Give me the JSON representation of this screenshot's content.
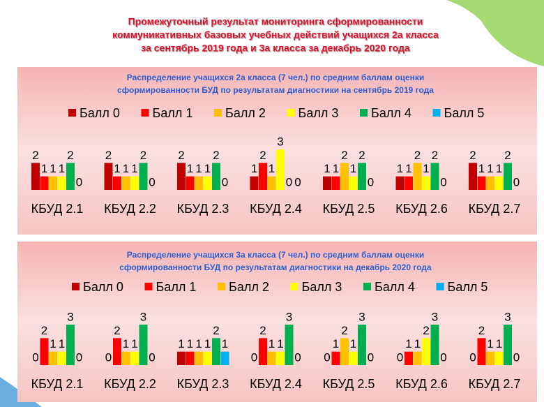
{
  "title": [
    "Промежуточный результат мониторинга сформированности",
    "коммуникативных базовых учебных действий учащихся 2а класса",
    "за сентябрь 2019 года и 3а класса за декабрь 2020 года"
  ],
  "chart_data": [
    {
      "type": "bar",
      "title": [
        "Распределение учащихся 2а класса (7 чел.) по средним баллам оценки",
        "сформированности  БУД по результатам диагностики на сентябрь 2019 года"
      ],
      "categories": [
        "КБУД 2.1",
        "КБУД 2.2",
        "КБУД 2.3",
        "КБУД 2.4",
        "КБУД 2.5",
        "КБУД 2.6",
        "КБУД 2.7"
      ],
      "series": [
        {
          "name": "Балл 0",
          "color": "#c00000",
          "values": [
            2,
            2,
            2,
            1,
            1,
            1,
            2
          ]
        },
        {
          "name": "Балл 1",
          "color": "#ff0000",
          "values": [
            1,
            1,
            1,
            2,
            1,
            1,
            1
          ]
        },
        {
          "name": "Балл 2",
          "color": "#ffc000",
          "values": [
            1,
            1,
            1,
            1,
            2,
            2,
            1
          ]
        },
        {
          "name": "Балл 3",
          "color": "#ffff00",
          "values": [
            1,
            1,
            1,
            3,
            1,
            1,
            1
          ]
        },
        {
          "name": "Балл 4",
          "color": "#00b050",
          "values": [
            2,
            2,
            2,
            0,
            2,
            2,
            2
          ]
        },
        {
          "name": "Балл 5",
          "color": "#00b0f0",
          "values": [
            0,
            0,
            0,
            0,
            0,
            0,
            0
          ]
        }
      ]
    },
    {
      "type": "bar",
      "title": [
        "Распределение учащихся 3а класса (7 чел.) по средним баллам оценки",
        "сформированности  БУД по результатам диагностики на декабрь 2020 года"
      ],
      "categories": [
        "КБУД 2.1",
        "КБУД 2.2",
        "КБУД 2.3",
        "КБУД 2.4",
        "КБУД 2.5",
        "КБУД 2.6",
        "КБУД 2.7"
      ],
      "series": [
        {
          "name": "Балл 0",
          "color": "#c00000",
          "values": [
            0,
            0,
            1,
            0,
            0,
            0,
            0
          ]
        },
        {
          "name": "Балл 1",
          "color": "#ff0000",
          "values": [
            2,
            2,
            1,
            2,
            1,
            1,
            2
          ]
        },
        {
          "name": "Балл 2",
          "color": "#ffc000",
          "values": [
            1,
            1,
            1,
            1,
            2,
            1,
            1
          ]
        },
        {
          "name": "Балл 3",
          "color": "#ffff00",
          "values": [
            1,
            1,
            1,
            1,
            1,
            2,
            1
          ]
        },
        {
          "name": "Балл 4",
          "color": "#00b050",
          "values": [
            3,
            3,
            2,
            3,
            3,
            3,
            3
          ]
        },
        {
          "name": "Балл 5",
          "color": "#00b0f0",
          "values": [
            0,
            0,
            1,
            0,
            0,
            0,
            0
          ]
        }
      ]
    }
  ]
}
